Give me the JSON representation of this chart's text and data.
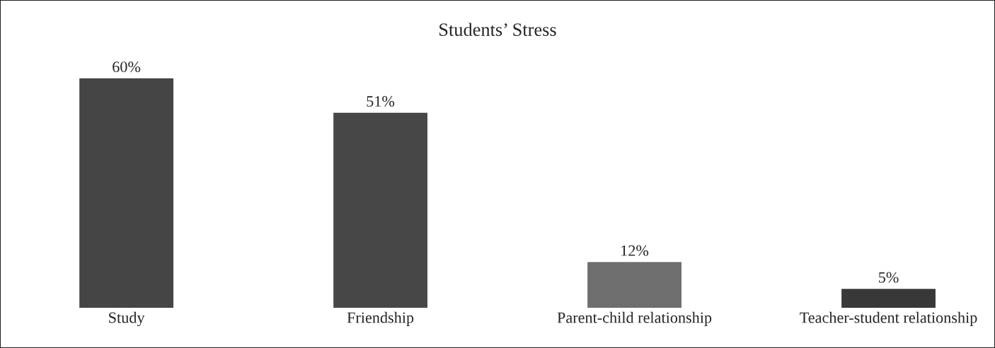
{
  "chart_data": {
    "type": "bar",
    "title": "Students’ Stress",
    "categories": [
      "Study",
      "Friendship",
      "Parent-child relationship",
      "Teacher-student relationship"
    ],
    "values": [
      60,
      51,
      12,
      5
    ],
    "colors": [
      "#454545",
      "#474747",
      "#6e6e6e",
      "#383838"
    ],
    "value_labels": [
      "60%",
      "51%",
      "12%",
      "5%"
    ],
    "grid": false
  }
}
